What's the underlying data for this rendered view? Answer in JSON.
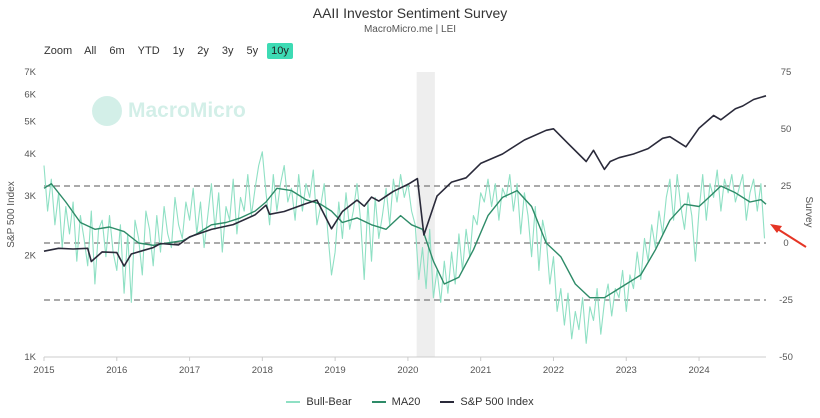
{
  "header": {
    "title": "AAII Investor Sentiment Survey",
    "subtitle": "MacroMicro.me | LEI"
  },
  "watermark": "MacroMicro",
  "zoom": {
    "label": "Zoom",
    "options": [
      "All",
      "6m",
      "YTD",
      "1y",
      "2y",
      "3y",
      "5y",
      "10y"
    ],
    "selected": "10y"
  },
  "legend": [
    {
      "name": "Bull-Bear",
      "color": "#8fe0c4"
    },
    {
      "name": "MA20",
      "color": "#2e8b68"
    },
    {
      "name": "S&P 500 Index",
      "color": "#2a2a3a"
    }
  ],
  "chart_data": {
    "type": "line",
    "x_tick_labels": [
      "2015",
      "2016",
      "2017",
      "2018",
      "2019",
      "2020",
      "2021",
      "2022",
      "2023",
      "2024"
    ],
    "xlim": [
      2015.0,
      2024.92
    ],
    "left_axis": {
      "label": "S&P 500 Index",
      "scale": "log",
      "ylim": [
        1000,
        7000
      ],
      "ticks": [
        1000,
        2000,
        3000,
        4000,
        5000,
        6000,
        7000
      ],
      "tick_labels": [
        "1K",
        "2K",
        "3K",
        "4K",
        "5K",
        "6K",
        "7K"
      ]
    },
    "right_axis": {
      "label": "Survey",
      "ylim": [
        -50,
        75
      ],
      "ticks": [
        -50,
        -25,
        0,
        25,
        50,
        75
      ],
      "tick_labels": [
        "-50",
        "-25",
        "0",
        "25",
        "50",
        "75"
      ],
      "reference_lines": [
        25,
        0,
        -25
      ]
    },
    "shaded_range": [
      2020.12,
      2020.37
    ],
    "annotation": "red arrow pointing at latest MA20 value",
    "series": [
      {
        "name": "S&P 500 Index",
        "axis": "left",
        "x": [
          2015.0,
          2015.2,
          2015.4,
          2015.6,
          2015.65,
          2015.8,
          2016.0,
          2016.1,
          2016.2,
          2016.4,
          2016.5,
          2016.6,
          2016.85,
          2017.0,
          2017.3,
          2017.6,
          2017.9,
          2018.05,
          2018.1,
          2018.3,
          2018.6,
          2018.75,
          2018.95,
          2019.1,
          2019.3,
          2019.4,
          2019.5,
          2019.6,
          2019.8,
          2020.0,
          2020.13,
          2020.22,
          2020.4,
          2020.6,
          2020.8,
          2021.0,
          2021.3,
          2021.6,
          2021.9,
          2022.0,
          2022.2,
          2022.45,
          2022.55,
          2022.7,
          2022.78,
          2022.9,
          2023.1,
          2023.3,
          2023.5,
          2023.6,
          2023.82,
          2024.0,
          2024.2,
          2024.3,
          2024.5,
          2024.6,
          2024.75,
          2024.92
        ],
        "y": [
          2060,
          2100,
          2090,
          2100,
          1920,
          2050,
          2040,
          1860,
          2020,
          2080,
          2110,
          2170,
          2150,
          2270,
          2390,
          2470,
          2640,
          2820,
          2650,
          2700,
          2850,
          2920,
          2400,
          2700,
          2920,
          2800,
          2980,
          2900,
          3100,
          3250,
          3380,
          2300,
          3000,
          3300,
          3400,
          3750,
          4000,
          4400,
          4700,
          4750,
          4300,
          3800,
          4100,
          3600,
          3800,
          3900,
          4000,
          4150,
          4450,
          4500,
          4200,
          4770,
          5200,
          5050,
          5450,
          5550,
          5800,
          5950
        ]
      },
      {
        "name": "MA20",
        "axis": "right",
        "x": [
          2015.0,
          2015.1,
          2015.3,
          2015.5,
          2015.7,
          2015.9,
          2016.1,
          2016.3,
          2016.5,
          2016.7,
          2016.9,
          2017.1,
          2017.3,
          2017.5,
          2017.7,
          2017.9,
          2018.05,
          2018.2,
          2018.4,
          2018.6,
          2018.8,
          2018.95,
          2019.1,
          2019.3,
          2019.5,
          2019.7,
          2019.9,
          2020.05,
          2020.2,
          2020.35,
          2020.5,
          2020.7,
          2020.9,
          2021.1,
          2021.3,
          2021.5,
          2021.7,
          2021.9,
          2022.1,
          2022.3,
          2022.5,
          2022.7,
          2022.85,
          2023.0,
          2023.2,
          2023.4,
          2023.6,
          2023.8,
          2024.0,
          2024.1,
          2024.3,
          2024.5,
          2024.7,
          2024.85,
          2024.92
        ],
        "y": [
          24,
          26,
          18,
          9,
          6,
          7,
          5,
          0,
          -1,
          0,
          1,
          4,
          8,
          9,
          11,
          14,
          18,
          24,
          23,
          19,
          17,
          14,
          9,
          11,
          8,
          6,
          12,
          8,
          6,
          -8,
          -18,
          -15,
          -3,
          12,
          20,
          23,
          16,
          0,
          -6,
          -18,
          -24,
          -24,
          -21,
          -18,
          -14,
          -3,
          10,
          17,
          16,
          19,
          25,
          22,
          18,
          19,
          17
        ]
      },
      {
        "name": "Bull-Bear",
        "axis": "right",
        "x": [
          2015.0,
          2015.05,
          2015.1,
          2015.15,
          2015.2,
          2015.25,
          2015.3,
          2015.35,
          2015.4,
          2015.45,
          2015.5,
          2015.55,
          2015.6,
          2015.65,
          2015.7,
          2015.75,
          2015.8,
          2015.85,
          2015.9,
          2015.95,
          2016.0,
          2016.05,
          2016.1,
          2016.15,
          2016.2,
          2016.25,
          2016.3,
          2016.35,
          2016.4,
          2016.45,
          2016.5,
          2016.55,
          2016.6,
          2016.65,
          2016.7,
          2016.75,
          2016.8,
          2016.85,
          2016.9,
          2016.95,
          2017.0,
          2017.05,
          2017.1,
          2017.15,
          2017.2,
          2017.25,
          2017.3,
          2017.35,
          2017.4,
          2017.45,
          2017.5,
          2017.55,
          2017.6,
          2017.65,
          2017.7,
          2017.75,
          2017.8,
          2017.85,
          2017.9,
          2017.95,
          2018.0,
          2018.05,
          2018.1,
          2018.15,
          2018.2,
          2018.25,
          2018.3,
          2018.35,
          2018.4,
          2018.45,
          2018.5,
          2018.55,
          2018.6,
          2018.65,
          2018.7,
          2018.75,
          2018.8,
          2018.85,
          2018.9,
          2018.95,
          2019.0,
          2019.05,
          2019.1,
          2019.15,
          2019.2,
          2019.25,
          2019.3,
          2019.35,
          2019.4,
          2019.45,
          2019.5,
          2019.55,
          2019.6,
          2019.65,
          2019.7,
          2019.75,
          2019.8,
          2019.85,
          2019.9,
          2019.95,
          2020.0,
          2020.05,
          2020.1,
          2020.15,
          2020.2,
          2020.25,
          2020.3,
          2020.35,
          2020.4,
          2020.45,
          2020.5,
          2020.55,
          2020.6,
          2020.65,
          2020.7,
          2020.75,
          2020.8,
          2020.85,
          2020.9,
          2020.95,
          2021.0,
          2021.05,
          2021.1,
          2021.15,
          2021.2,
          2021.25,
          2021.3,
          2021.35,
          2021.4,
          2021.45,
          2021.5,
          2021.55,
          2021.6,
          2021.65,
          2021.7,
          2021.75,
          2021.8,
          2021.85,
          2021.9,
          2021.95,
          2022.0,
          2022.05,
          2022.1,
          2022.15,
          2022.2,
          2022.25,
          2022.3,
          2022.35,
          2022.4,
          2022.45,
          2022.5,
          2022.55,
          2022.6,
          2022.65,
          2022.7,
          2022.75,
          2022.8,
          2022.85,
          2022.9,
          2022.95,
          2023.0,
          2023.05,
          2023.1,
          2023.15,
          2023.2,
          2023.25,
          2023.3,
          2023.35,
          2023.4,
          2023.45,
          2023.5,
          2023.55,
          2023.6,
          2023.65,
          2023.7,
          2023.75,
          2023.8,
          2023.85,
          2023.9,
          2023.95,
          2024.0,
          2024.05,
          2024.1,
          2024.15,
          2024.2,
          2024.25,
          2024.3,
          2024.35,
          2024.4,
          2024.45,
          2024.5,
          2024.55,
          2024.6,
          2024.65,
          2024.7,
          2024.75,
          2024.8,
          2024.85,
          2024.9
        ],
        "y": [
          34,
          14,
          28,
          8,
          22,
          -2,
          16,
          4,
          18,
          -8,
          12,
          2,
          -10,
          14,
          -18,
          6,
          10,
          -6,
          12,
          -4,
          -12,
          8,
          -22,
          4,
          -26,
          10,
          2,
          -14,
          14,
          6,
          -10,
          12,
          -4,
          16,
          4,
          -2,
          20,
          8,
          2,
          18,
          10,
          24,
          4,
          18,
          -2,
          12,
          26,
          6,
          22,
          -4,
          16,
          10,
          28,
          4,
          20,
          14,
          30,
          12,
          24,
          34,
          40,
          22,
          8,
          30,
          14,
          26,
          34,
          18,
          24,
          10,
          30,
          14,
          26,
          20,
          32,
          8,
          16,
          26,
          4,
          -14,
          -4,
          18,
          2,
          22,
          6,
          14,
          26,
          10,
          -16,
          18,
          -8,
          20,
          2,
          12,
          24,
          8,
          28,
          18,
          30,
          20,
          26,
          14,
          8,
          -16,
          -2,
          -20,
          6,
          -24,
          -12,
          -26,
          -8,
          -22,
          -4,
          -18,
          4,
          -12,
          6,
          -6,
          12,
          8,
          22,
          18,
          28,
          16,
          26,
          10,
          24,
          20,
          30,
          14,
          26,
          4,
          22,
          12,
          -6,
          16,
          -12,
          10,
          2,
          -18,
          -6,
          -30,
          -20,
          -36,
          -22,
          -42,
          -30,
          -38,
          -24,
          -44,
          -28,
          -34,
          -20,
          -40,
          -26,
          -18,
          -32,
          -20,
          -24,
          -12,
          -30,
          -14,
          -20,
          -4,
          -16,
          2,
          -8,
          8,
          -2,
          14,
          4,
          20,
          28,
          10,
          30,
          16,
          6,
          22,
          12,
          -8,
          14,
          30,
          10,
          26,
          20,
          32,
          14,
          28,
          22,
          30,
          18,
          24,
          30,
          10,
          22,
          28,
          14,
          26,
          2
        ]
      }
    ]
  }
}
